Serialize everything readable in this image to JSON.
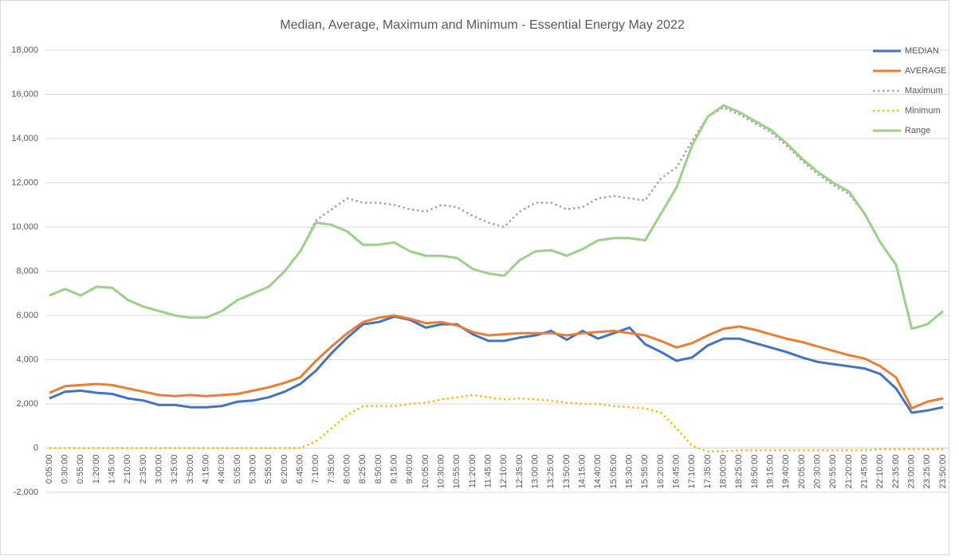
{
  "chart_data": {
    "type": "line",
    "title": "Median, Average, Maximum and Minimum - Essential Energy May 2022",
    "categories": [
      "0:05:00",
      "0:30:00",
      "0:55:00",
      "1:20:00",
      "1:45:00",
      "2:10:00",
      "2:35:00",
      "3:00:00",
      "3:25:00",
      "3:50:00",
      "4:15:00",
      "4:40:00",
      "5:05:00",
      "5:30:00",
      "5:55:00",
      "6:20:00",
      "6:45:00",
      "7:10:00",
      "7:35:00",
      "8:00:00",
      "8:25:00",
      "8:50:00",
      "9:15:00",
      "9:40:00",
      "10:05:00",
      "10:30:00",
      "10:55:00",
      "11:20:00",
      "11:45:00",
      "12:10:00",
      "12:35:00",
      "13:00:00",
      "13:25:00",
      "13:50:00",
      "14:15:00",
      "14:40:00",
      "15:05:00",
      "15:30:00",
      "15:55:00",
      "16:20:00",
      "16:45:00",
      "17:10:00",
      "17:35:00",
      "18:00:00",
      "18:25:00",
      "18:50:00",
      "19:15:00",
      "19:40:00",
      "20:05:00",
      "20:30:00",
      "20:55:00",
      "21:20:00",
      "21:45:00",
      "22:10:00",
      "22:35:00",
      "23:00:00",
      "23:25:00",
      "23:50:00"
    ],
    "series": [
      {
        "name": "MEDIAN",
        "color": "#4472c4",
        "dash": "solid",
        "values": [
          2250,
          2550,
          2600,
          2500,
          2450,
          2250,
          2150,
          1950,
          1950,
          1850,
          1850,
          1900,
          2100,
          2150,
          2300,
          2550,
          2900,
          3500,
          4300,
          5000,
          5600,
          5700,
          5950,
          5800,
          5450,
          5600,
          5600,
          5150,
          4850,
          4850,
          5000,
          5100,
          5300,
          4900,
          5300,
          4950,
          5200,
          5450,
          4700,
          4350,
          3950,
          4100,
          4650,
          4950,
          4950,
          4750,
          4550,
          4350,
          4100,
          3900,
          3800,
          3700,
          3600,
          3350,
          2700,
          1600,
          1700,
          1850
        ]
      },
      {
        "name": "AVERAGE",
        "color": "#ed7d31",
        "dash": "solid",
        "values": [
          2500,
          2800,
          2850,
          2900,
          2850,
          2700,
          2550,
          2400,
          2350,
          2400,
          2350,
          2400,
          2450,
          2600,
          2750,
          2950,
          3200,
          3950,
          4600,
          5200,
          5700,
          5900,
          6000,
          5850,
          5650,
          5700,
          5550,
          5250,
          5100,
          5150,
          5200,
          5200,
          5200,
          5100,
          5200,
          5250,
          5300,
          5200,
          5100,
          4850,
          4550,
          4750,
          5100,
          5400,
          5500,
          5350,
          5150,
          4950,
          4800,
          4600,
          4400,
          4200,
          4050,
          3700,
          3200,
          1800,
          2100,
          2250
        ]
      },
      {
        "name": "Maximum",
        "color": "#a5a5a5",
        "dash": "dotted",
        "values": [
          6900,
          7200,
          6900,
          7300,
          7250,
          6700,
          6400,
          6200,
          6000,
          5900,
          5900,
          6200,
          6700,
          7000,
          7300,
          8000,
          8900,
          10300,
          10800,
          11300,
          11100,
          11100,
          11000,
          10800,
          10700,
          11000,
          10900,
          10500,
          10200,
          10000,
          10700,
          11100,
          11100,
          10800,
          10900,
          11300,
          11400,
          11300,
          11200,
          12200,
          12700,
          13900,
          15000,
          15400,
          15100,
          14700,
          14300,
          13700,
          13000,
          12400,
          11900,
          11500,
          10600,
          9300,
          8300,
          5400,
          5600,
          6200
        ]
      },
      {
        "name": "Minimum",
        "color": "#ffc000",
        "dash": "dotted",
        "values": [
          0,
          0,
          0,
          0,
          0,
          0,
          0,
          0,
          0,
          0,
          0,
          0,
          0,
          0,
          0,
          0,
          0,
          300,
          900,
          1500,
          1900,
          1900,
          1900,
          2000,
          2050,
          2200,
          2300,
          2400,
          2300,
          2200,
          2250,
          2200,
          2150,
          2050,
          2000,
          2000,
          1900,
          1850,
          1800,
          1600,
          900,
          100,
          -150,
          -150,
          -100,
          -100,
          -100,
          -100,
          -100,
          -100,
          -100,
          -100,
          -100,
          -50,
          -50,
          -50,
          -50,
          -50
        ]
      },
      {
        "name": "Range",
        "color": "#9bd18b",
        "dash": "solid",
        "values": [
          6900,
          7200,
          6900,
          7300,
          7250,
          6700,
          6400,
          6200,
          6000,
          5900,
          5900,
          6200,
          6700,
          7000,
          7300,
          8000,
          8900,
          10200,
          10100,
          9800,
          9200,
          9200,
          9300,
          8900,
          8700,
          8700,
          8600,
          8100,
          7900,
          7800,
          8500,
          8900,
          8950,
          8700,
          9000,
          9400,
          9500,
          9500,
          9400,
          10600,
          11800,
          13700,
          15000,
          15500,
          15200,
          14800,
          14400,
          13800,
          13100,
          12500,
          12000,
          11600,
          10600,
          9300,
          8300,
          5400,
          5600,
          6200
        ]
      }
    ],
    "ylim": [
      -2000,
      18000
    ],
    "yticks": [
      {
        "value": -2000,
        "label": "-2,000"
      },
      0,
      {
        "value": 2000,
        "label": "2,000"
      },
      {
        "value": 4000,
        "label": "4,000"
      },
      {
        "value": 6000,
        "label": "6,000"
      },
      {
        "value": 8000,
        "label": "8,000"
      },
      {
        "value": 10000,
        "label": "10,000"
      },
      {
        "value": 12000,
        "label": "12,000"
      },
      {
        "value": 14000,
        "label": "14,000"
      },
      {
        "value": 16000,
        "label": "16,000"
      },
      {
        "value": 18000,
        "label": "18,000"
      }
    ],
    "grid": true,
    "legend": "top-right"
  }
}
